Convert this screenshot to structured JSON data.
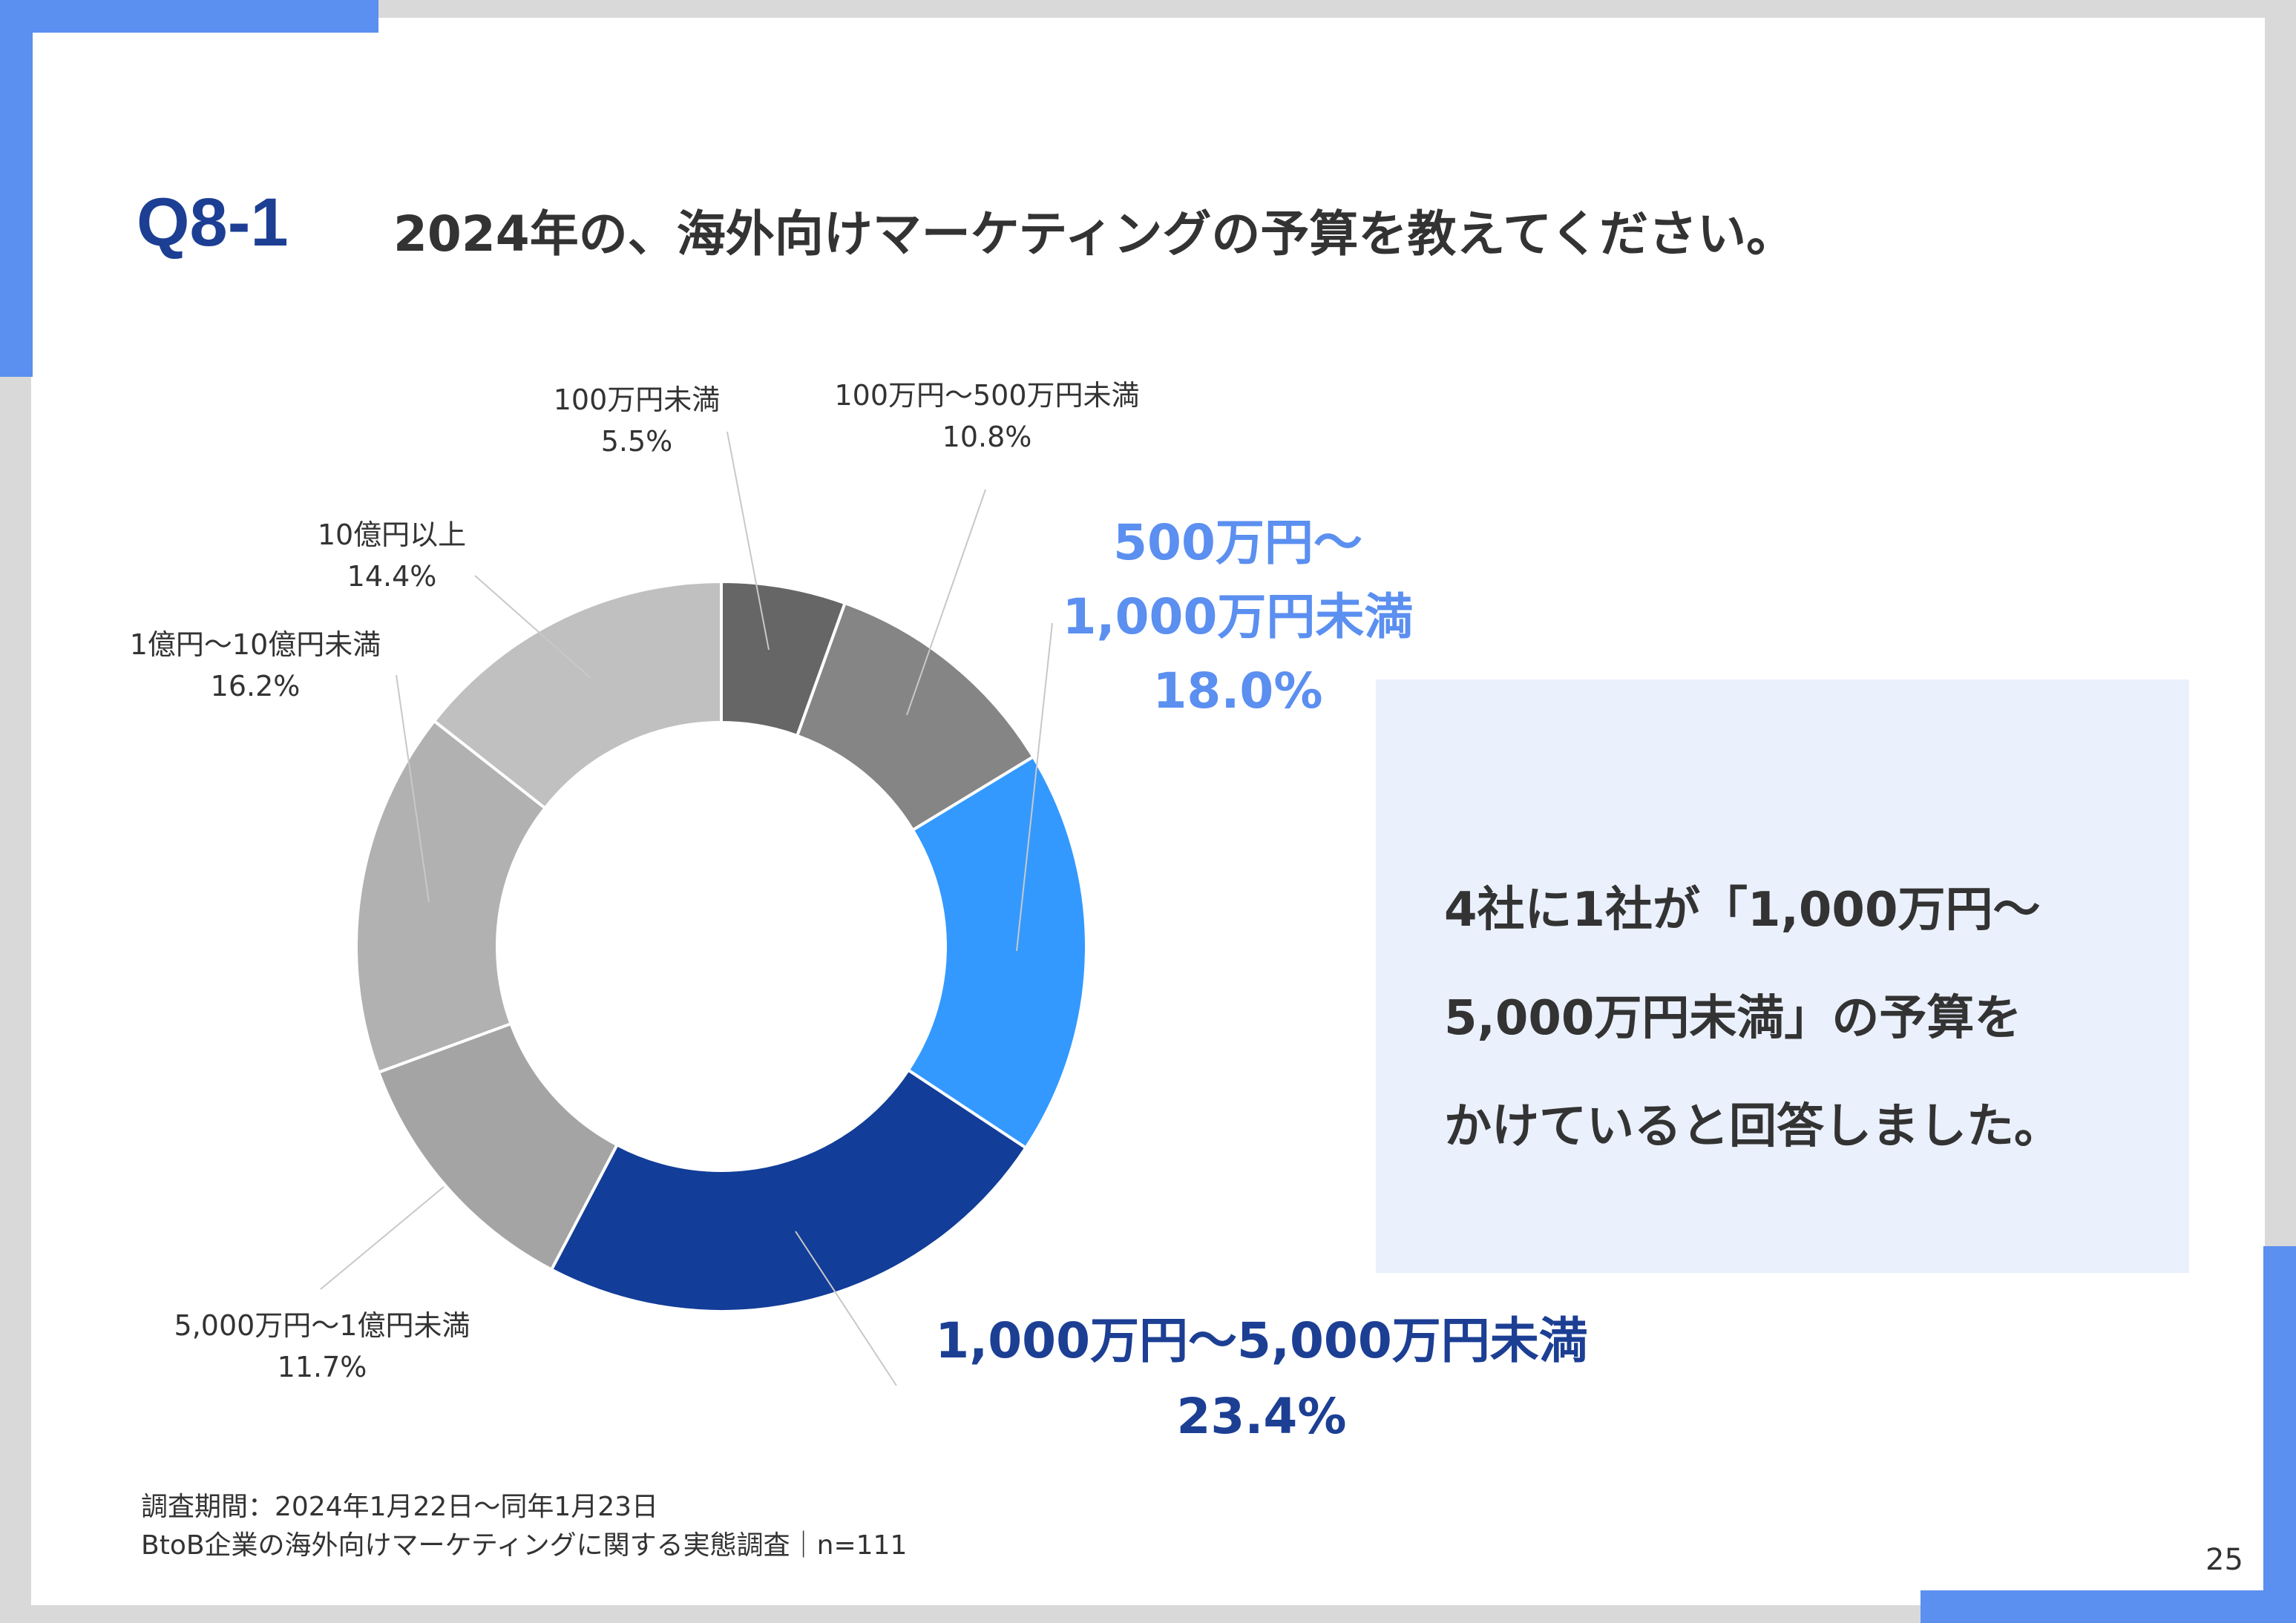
{
  "header": {
    "question_number": "Q8-1",
    "question_text": "2024年の、海外向けマーケティングの予算を教えてください。"
  },
  "chart_data": {
    "type": "pie",
    "subtype": "donut",
    "title": "",
    "slices": [
      {
        "label": "100万円未満",
        "value": 5.5,
        "value_label": "5.5%",
        "color": "#666666"
      },
      {
        "label": "100万円〜500万円未満",
        "value": 10.8,
        "value_label": "10.8%",
        "color": "#858585"
      },
      {
        "label": "500万円〜1,000万円未満",
        "label_lines": [
          "500万円〜",
          "1,000万円未満"
        ],
        "value": 18.0,
        "value_label": "18.0%",
        "color": "#3399ff",
        "label_color": "#5b8ff0"
      },
      {
        "label": "1,000万円〜5,000万円未満",
        "value": 23.4,
        "value_label": "23.4%",
        "color": "#123d98",
        "label_color": "#1c3f94"
      },
      {
        "label": "5,000万円〜1億円未満",
        "value": 11.7,
        "value_label": "11.7%",
        "color": "#a4a4a4"
      },
      {
        "label": "1億円〜10億円未満",
        "value": 16.2,
        "value_label": "16.2%",
        "color": "#b1b1b1"
      },
      {
        "label": "10億円以上",
        "value": 14.4,
        "value_label": "14.4%",
        "color": "#c0c0c0"
      }
    ],
    "start_angle_deg": 0,
    "direction": "clockwise"
  },
  "callout": {
    "lines": [
      "4社に1社が「1,000万円〜",
      "5,000万円未満」の予算を",
      "かけていると回答しました。"
    ],
    "background": "#eaf0fc"
  },
  "footer": {
    "survey_period": "調査期間：2024年1月22日〜同年1月23日",
    "survey_name": "BtoB企業の海外向けマーケティングに関する実態調査｜n=111",
    "page_number": "25"
  },
  "colors": {
    "accent": "#5b8ff0",
    "title_blue": "#1c3f94",
    "frame": "#d9d9d9"
  }
}
